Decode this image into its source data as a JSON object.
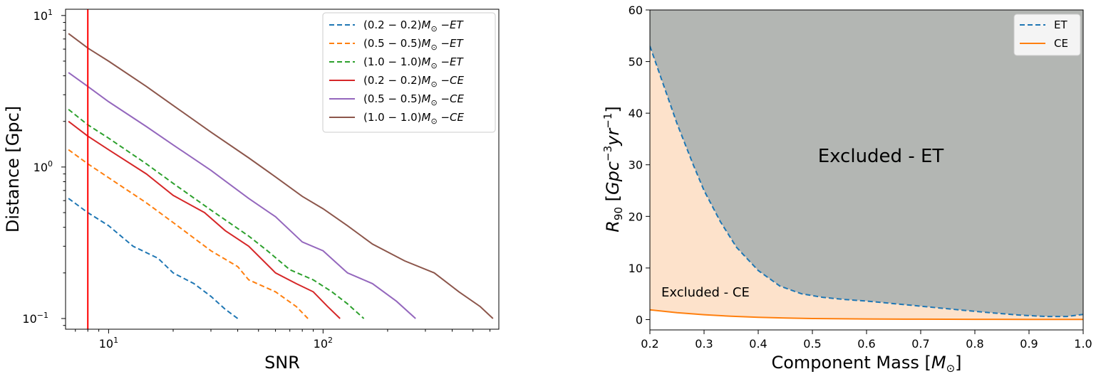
{
  "chart_data": [
    {
      "type": "line",
      "xscale": "log",
      "yscale": "log",
      "xlabel": "SNR",
      "ylabel": "Distance [Gpc]",
      "xlim": [
        6.3,
        660
      ],
      "ylim": [
        0.085,
        11
      ],
      "x_ticks": [
        {
          "value": 10,
          "base": "10",
          "exp": "1"
        },
        {
          "value": 100,
          "base": "10",
          "exp": "2"
        }
      ],
      "y_ticks": [
        {
          "value": 0.1,
          "base": "10",
          "exp": "−1"
        },
        {
          "value": 1,
          "base": "10",
          "exp": "0"
        },
        {
          "value": 10,
          "base": "10",
          "exp": "1"
        }
      ],
      "threshold_line": {
        "x": 8,
        "color": "#ff0000"
      },
      "legend_position": "top-right",
      "series": [
        {
          "name": "(0.2 − 0.2)M⊙ −ET",
          "m": "(0.2 − 0.2)",
          "det": "ET",
          "color": "#1f77b4",
          "dashed": true,
          "x": [
            6.5,
            8,
            10,
            13,
            17,
            20,
            25,
            30,
            35,
            40
          ],
          "y": [
            0.62,
            0.5,
            0.41,
            0.3,
            0.25,
            0.2,
            0.17,
            0.14,
            0.115,
            0.1
          ]
        },
        {
          "name": "(0.5 − 0.5)M⊙ −ET",
          "m": "(0.5 − 0.5)",
          "det": "ET",
          "color": "#ff7f0e",
          "dashed": true,
          "x": [
            6.5,
            8,
            10,
            15,
            20,
            30,
            40,
            45,
            60,
            75,
            85
          ],
          "y": [
            1.3,
            1.05,
            0.85,
            0.58,
            0.43,
            0.28,
            0.22,
            0.18,
            0.15,
            0.12,
            0.1
          ]
        },
        {
          "name": "(1.0 − 1.0)M⊙ −ET",
          "m": "(1.0 − 1.0)",
          "det": "ET",
          "color": "#2ca02c",
          "dashed": true,
          "x": [
            6.5,
            8,
            10,
            15,
            20,
            30,
            45,
            55,
            70,
            90,
            110,
            130,
            155
          ],
          "y": [
            2.4,
            1.9,
            1.55,
            1.05,
            0.78,
            0.52,
            0.35,
            0.28,
            0.21,
            0.18,
            0.15,
            0.125,
            0.1
          ]
        },
        {
          "name": "(0.2 − 0.2)M⊙ −CE",
          "m": "(0.2 − 0.2)",
          "det": "CE",
          "color": "#d62728",
          "dashed": false,
          "x": [
            6.5,
            8,
            10,
            15,
            20,
            28,
            35,
            45,
            60,
            75,
            90,
            105,
            120
          ],
          "y": [
            2.0,
            1.6,
            1.3,
            0.9,
            0.65,
            0.5,
            0.38,
            0.3,
            0.2,
            0.17,
            0.15,
            0.12,
            0.1
          ]
        },
        {
          "name": "(0.5 − 0.5)M⊙ −CE",
          "m": "(0.5 − 0.5)",
          "det": "CE",
          "color": "#9467bd",
          "dashed": false,
          "x": [
            6.5,
            8,
            10,
            15,
            20,
            30,
            45,
            60,
            80,
            100,
            130,
            170,
            220,
            270
          ],
          "y": [
            4.2,
            3.4,
            2.7,
            1.85,
            1.4,
            0.95,
            0.62,
            0.47,
            0.32,
            0.28,
            0.2,
            0.17,
            0.13,
            0.1
          ]
        },
        {
          "name": "(1.0 − 1.0)M⊙ −CE",
          "m": "(1.0 − 1.0)",
          "det": "CE",
          "color": "#8c564b",
          "dashed": false,
          "x": [
            6.5,
            8,
            10,
            15,
            20,
            30,
            45,
            60,
            80,
            100,
            130,
            170,
            240,
            330,
            430,
            540,
            620
          ],
          "y": [
            7.6,
            6.1,
            5.0,
            3.4,
            2.55,
            1.7,
            1.15,
            0.86,
            0.64,
            0.53,
            0.41,
            0.31,
            0.24,
            0.2,
            0.15,
            0.12,
            0.1
          ]
        }
      ]
    },
    {
      "type": "area",
      "xlabel": "Component Mass",
      "xlabel_unit": "M",
      "xlabel_sub": "⊙",
      "ylabel_base": "R",
      "ylabel_sub": "90",
      "ylabel_unit_a": "Gpc",
      "ylabel_exp_a": "−3",
      "ylabel_unit_b": "yr",
      "ylabel_exp_b": "−1",
      "xlim": [
        0.2,
        1.0
      ],
      "ylim": [
        -2,
        60
      ],
      "x_ticks": [
        "0.2",
        "0.3",
        "0.4",
        "0.5",
        "0.6",
        "0.7",
        "0.8",
        "0.9",
        "1.0"
      ],
      "y_ticks": [
        "0",
        "10",
        "20",
        "30",
        "40",
        "50",
        "60"
      ],
      "legend_position": "top-right",
      "annotations": {
        "excluded_et": "Excluded - ET",
        "excluded_ce": "Excluded - CE"
      },
      "fill_colors": {
        "et": "#b3b6b3",
        "ce": "#fde2cb"
      },
      "series": [
        {
          "name": "ET",
          "color": "#1f77b4",
          "dashed": true,
          "x": [
            0.2,
            0.22,
            0.25,
            0.28,
            0.3,
            0.33,
            0.36,
            0.4,
            0.44,
            0.48,
            0.52,
            0.56,
            0.6,
            0.64,
            0.7,
            0.76,
            0.82,
            0.88,
            0.93,
            0.97,
            1.0
          ],
          "y": [
            53,
            47,
            38,
            30,
            25,
            19,
            14,
            9.5,
            6.5,
            5.0,
            4.3,
            3.9,
            3.6,
            3.2,
            2.6,
            2.0,
            1.4,
            0.9,
            0.6,
            0.6,
            1.0
          ]
        },
        {
          "name": "CE",
          "color": "#ff7f0e",
          "dashed": false,
          "x": [
            0.2,
            0.25,
            0.3,
            0.35,
            0.4,
            0.45,
            0.5,
            0.6,
            0.7,
            0.8,
            0.9,
            1.0
          ],
          "y": [
            1.9,
            1.35,
            0.95,
            0.65,
            0.45,
            0.3,
            0.2,
            0.12,
            0.08,
            0.05,
            0.03,
            0.02
          ]
        }
      ]
    }
  ]
}
